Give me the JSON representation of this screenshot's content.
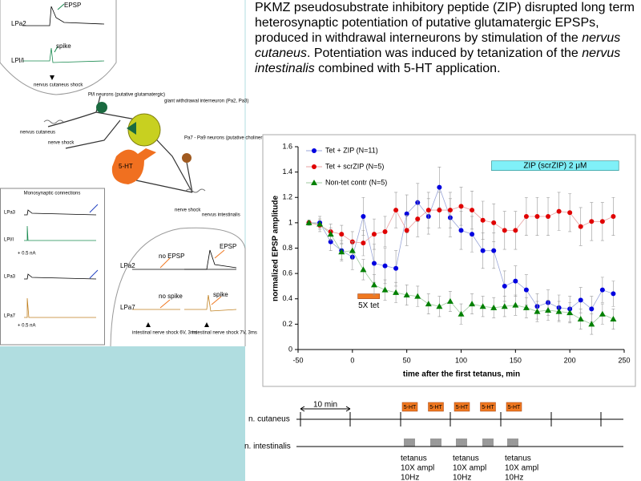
{
  "paragraph": [
    "PKMZ pseudosubstrate inhibitory peptide (ZIP) disrupted long term heterosynaptic potentiation of putative glutamatergic EPSPs, produced in withdrawal interneurons by stimulation of the ",
    "nervus cutaneus",
    ". Potentiation was induced by tetanization of  the ",
    "nervus intestinalis",
    " combined with 5-HT application."
  ],
  "left_panel": {
    "top_traces": [
      "EPSP",
      "LPa2",
      "spike",
      "LPl/I",
      "nervus cutaneus shock"
    ],
    "circuit": [
      "Pl/l neurons (putative glutamatergic)",
      "giant withdrawal interneuron (Pa2, Pa3)",
      "nervus cutaneus",
      "nerve shock",
      "5-HT",
      "Pa7 - Pa9 neurons (putative cholinergic)",
      "nerve shock",
      "nervus intestinalis"
    ],
    "monosynaptic": [
      "Monosynaptic connections",
      "LPa3",
      "LPl/I",
      "+ 0.5 nA",
      "LPa3",
      "LPa7",
      "+ 0.5 nA"
    ],
    "stimulation": [
      "no EPSP",
      "EPSP",
      "LPa2",
      "no spike",
      "spike",
      "LPa7",
      "intestinal nerve shock 6V, 3ms",
      "intestinal nerve shock 7V, 3ms"
    ]
  },
  "chart_data": {
    "type": "line",
    "xlabel": "time after the first tetanus, min",
    "ylabel": "normalized EPSP amplitude",
    "x": [
      -40,
      -30,
      -20,
      -10,
      0,
      10,
      20,
      30,
      40,
      50,
      60,
      70,
      80,
      90,
      100,
      110,
      120,
      130,
      140,
      150,
      160,
      170,
      180,
      190,
      200,
      210,
      220,
      230,
      240
    ],
    "xlim": [
      -50,
      250
    ],
    "xticks": [
      -50,
      0,
      50,
      100,
      150,
      200,
      250
    ],
    "ylim": [
      0,
      1.6
    ],
    "yticks": [
      0,
      0.2,
      0.4,
      0.6,
      0.8,
      1,
      1.2,
      1.4,
      1.6
    ],
    "grid": false,
    "legend": "upper left",
    "series": [
      {
        "name": "Tet + ZIP (N=11)",
        "color": "#0000e0",
        "line_color": "#9aa6d8",
        "marker": "circle",
        "values": [
          1.0,
          1.0,
          0.85,
          0.78,
          0.73,
          1.05,
          0.68,
          0.66,
          0.64,
          1.07,
          1.16,
          1.05,
          1.28,
          1.04,
          0.94,
          0.91,
          0.78,
          0.78,
          0.5,
          0.54,
          0.47,
          0.34,
          0.37,
          0.33,
          0.32,
          0.39,
          0.32,
          0.47,
          0.44
        ],
        "errors": [
          0.02,
          0.05,
          0.07,
          0.08,
          0.1,
          0.15,
          0.15,
          0.14,
          0.14,
          0.15,
          0.15,
          0.14,
          0.16,
          0.15,
          0.15,
          0.14,
          0.14,
          0.14,
          0.12,
          0.12,
          0.12,
          0.1,
          0.1,
          0.1,
          0.1,
          0.1,
          0.1,
          0.1,
          0.1
        ]
      },
      {
        "name": "Tet + scrZIP (N=5)",
        "color": "#e00000",
        "line_color": "#e8a0a0",
        "marker": "circle",
        "values": [
          1.0,
          0.98,
          0.93,
          0.91,
          0.85,
          0.84,
          0.91,
          0.93,
          1.1,
          0.94,
          1.03,
          1.1,
          1.1,
          1.1,
          1.13,
          1.1,
          1.02,
          1.0,
          0.94,
          0.94,
          1.05,
          1.05,
          1.05,
          1.09,
          1.08,
          0.97,
          1.01,
          1.01,
          1.05
        ],
        "errors": [
          0.02,
          0.05,
          0.06,
          0.07,
          0.08,
          0.1,
          0.12,
          0.12,
          0.14,
          0.12,
          0.14,
          0.14,
          0.14,
          0.14,
          0.15,
          0.15,
          0.15,
          0.15,
          0.15,
          0.15,
          0.15,
          0.15,
          0.15,
          0.15,
          0.15,
          0.15,
          0.15,
          0.15,
          0.15
        ]
      },
      {
        "name": "Non-tet contr (N=5)",
        "color": "#008000",
        "line_color": "#a0c8a0",
        "marker": "triangle",
        "values": [
          1.0,
          0.99,
          0.91,
          0.77,
          0.78,
          0.63,
          0.51,
          0.47,
          0.45,
          0.43,
          0.42,
          0.36,
          0.34,
          0.38,
          0.28,
          0.36,
          0.34,
          0.33,
          0.34,
          0.35,
          0.33,
          0.3,
          0.31,
          0.3,
          0.29,
          0.24,
          0.2,
          0.28,
          0.24
        ],
        "errors": [
          0.02,
          0.04,
          0.05,
          0.06,
          0.07,
          0.08,
          0.08,
          0.08,
          0.08,
          0.08,
          0.08,
          0.08,
          0.08,
          0.08,
          0.08,
          0.08,
          0.08,
          0.08,
          0.08,
          0.08,
          0.08,
          0.08,
          0.08,
          0.08,
          0.08,
          0.08,
          0.08,
          0.08,
          0.08
        ]
      }
    ],
    "annotations": [
      {
        "text": "ZIP (scrZIP) 2 μM",
        "x": [
          128,
          245
        ],
        "y": 1.45,
        "color": "#80f0f8"
      },
      {
        "text": "5X tet",
        "x": [
          5,
          25
        ],
        "y": 0.42,
        "color": "#f07820"
      }
    ]
  },
  "protocol": {
    "scale": "10 min",
    "rows": [
      "n. cutaneus",
      "n. intestinalis"
    ],
    "drugs": [
      "5-HT",
      "5-HT",
      "5-HT",
      "5-HT",
      "5-HT"
    ],
    "tetanus": [
      [
        "tetanus",
        "10X ampl",
        "10Hz"
      ],
      [
        "tetanus",
        "10X ampl",
        "10Hz"
      ],
      [
        "tetanus",
        "10X ampl",
        "10Hz"
      ]
    ]
  }
}
